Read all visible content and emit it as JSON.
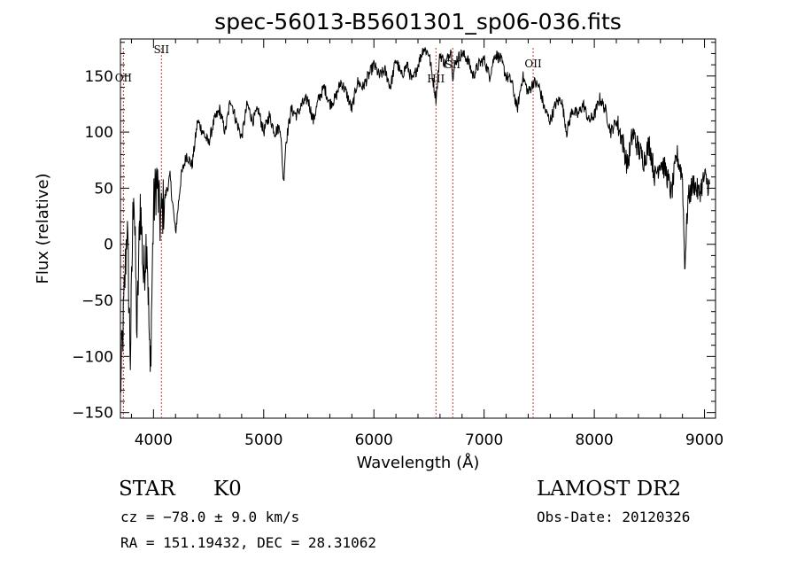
{
  "chart_data": {
    "type": "line",
    "title": "spec-56013-B5601301_sp06-036.fits",
    "xlabel": "Wavelength (Å)",
    "ylabel": "Flux (relative)",
    "xlim": [
      3700,
      9100
    ],
    "ylim": [
      -155,
      183
    ],
    "xticks": [
      4000,
      5000,
      6000,
      7000,
      8000,
      9000
    ],
    "yticks": [
      -150,
      -100,
      -50,
      0,
      50,
      100,
      150
    ],
    "grid": false,
    "series": [
      {
        "x": [
          3700,
          3730,
          3760,
          3790,
          3820,
          3850,
          3880,
          3910,
          3940,
          3970,
          4000,
          4030,
          4060,
          4100,
          4150,
          4200,
          4250,
          4300,
          4350,
          4400,
          4450,
          4500,
          4550,
          4600,
          4650,
          4700,
          4750,
          4800,
          4850,
          4900,
          4950,
          5000,
          5050,
          5100,
          5150,
          5180,
          5200,
          5250,
          5300,
          5350,
          5400,
          5450,
          5500,
          5550,
          5600,
          5650,
          5700,
          5750,
          5800,
          5850,
          5900,
          5950,
          6000,
          6050,
          6100,
          6150,
          6200,
          6250,
          6300,
          6350,
          6400,
          6450,
          6500,
          6530,
          6563,
          6600,
          6650,
          6700,
          6716,
          6750,
          6800,
          6850,
          6900,
          6950,
          7000,
          7050,
          7100,
          7150,
          7200,
          7250,
          7300,
          7350,
          7400,
          7450,
          7500,
          7550,
          7600,
          7650,
          7700,
          7750,
          7800,
          7850,
          7900,
          7950,
          8000,
          8050,
          8100,
          8150,
          8200,
          8250,
          8300,
          8350,
          8400,
          8450,
          8500,
          8550,
          8600,
          8650,
          8700,
          8750,
          8800,
          8820,
          8850,
          8900,
          8950,
          9000,
          9050
        ],
        "y": [
          -130,
          -60,
          20,
          -100,
          60,
          -80,
          40,
          -30,
          10,
          -120,
          30,
          60,
          20,
          40,
          60,
          10,
          60,
          80,
          70,
          110,
          100,
          90,
          110,
          120,
          100,
          130,
          110,
          95,
          125,
          110,
          120,
          100,
          115,
          100,
          105,
          55,
          90,
          120,
          115,
          125,
          130,
          110,
          130,
          140,
          125,
          130,
          145,
          135,
          120,
          145,
          140,
          150,
          160,
          150,
          155,
          140,
          165,
          150,
          160,
          145,
          160,
          175,
          170,
          150,
          130,
          170,
          160,
          175,
          150,
          165,
          170,
          165,
          150,
          160,
          165,
          150,
          170,
          165,
          150,
          145,
          120,
          150,
          135,
          145,
          140,
          120,
          110,
          125,
          130,
          100,
          120,
          115,
          125,
          110,
          115,
          130,
          120,
          100,
          110,
          95,
          70,
          100,
          85,
          75,
          90,
          60,
          75,
          65,
          45,
          80,
          60,
          -20,
          40,
          55,
          45,
          60,
          50
        ]
      }
    ],
    "lines": [
      {
        "label": "OII",
        "x": 3727
      },
      {
        "label": "SII",
        "x": 4072
      },
      {
        "label": "HII",
        "x": 6563
      },
      {
        "label": "SII",
        "x": 6716
      },
      {
        "label": "OII",
        "x": 7445
      }
    ]
  },
  "footer": {
    "object_class": "STAR",
    "subclass": "K0",
    "cz": "cz = −78.0 ± 9.0 km/s",
    "coords": "RA = 151.19432, DEC =  28.31062",
    "survey": "LAMOST DR2",
    "obs_date": "Obs-Date: 20120326"
  }
}
